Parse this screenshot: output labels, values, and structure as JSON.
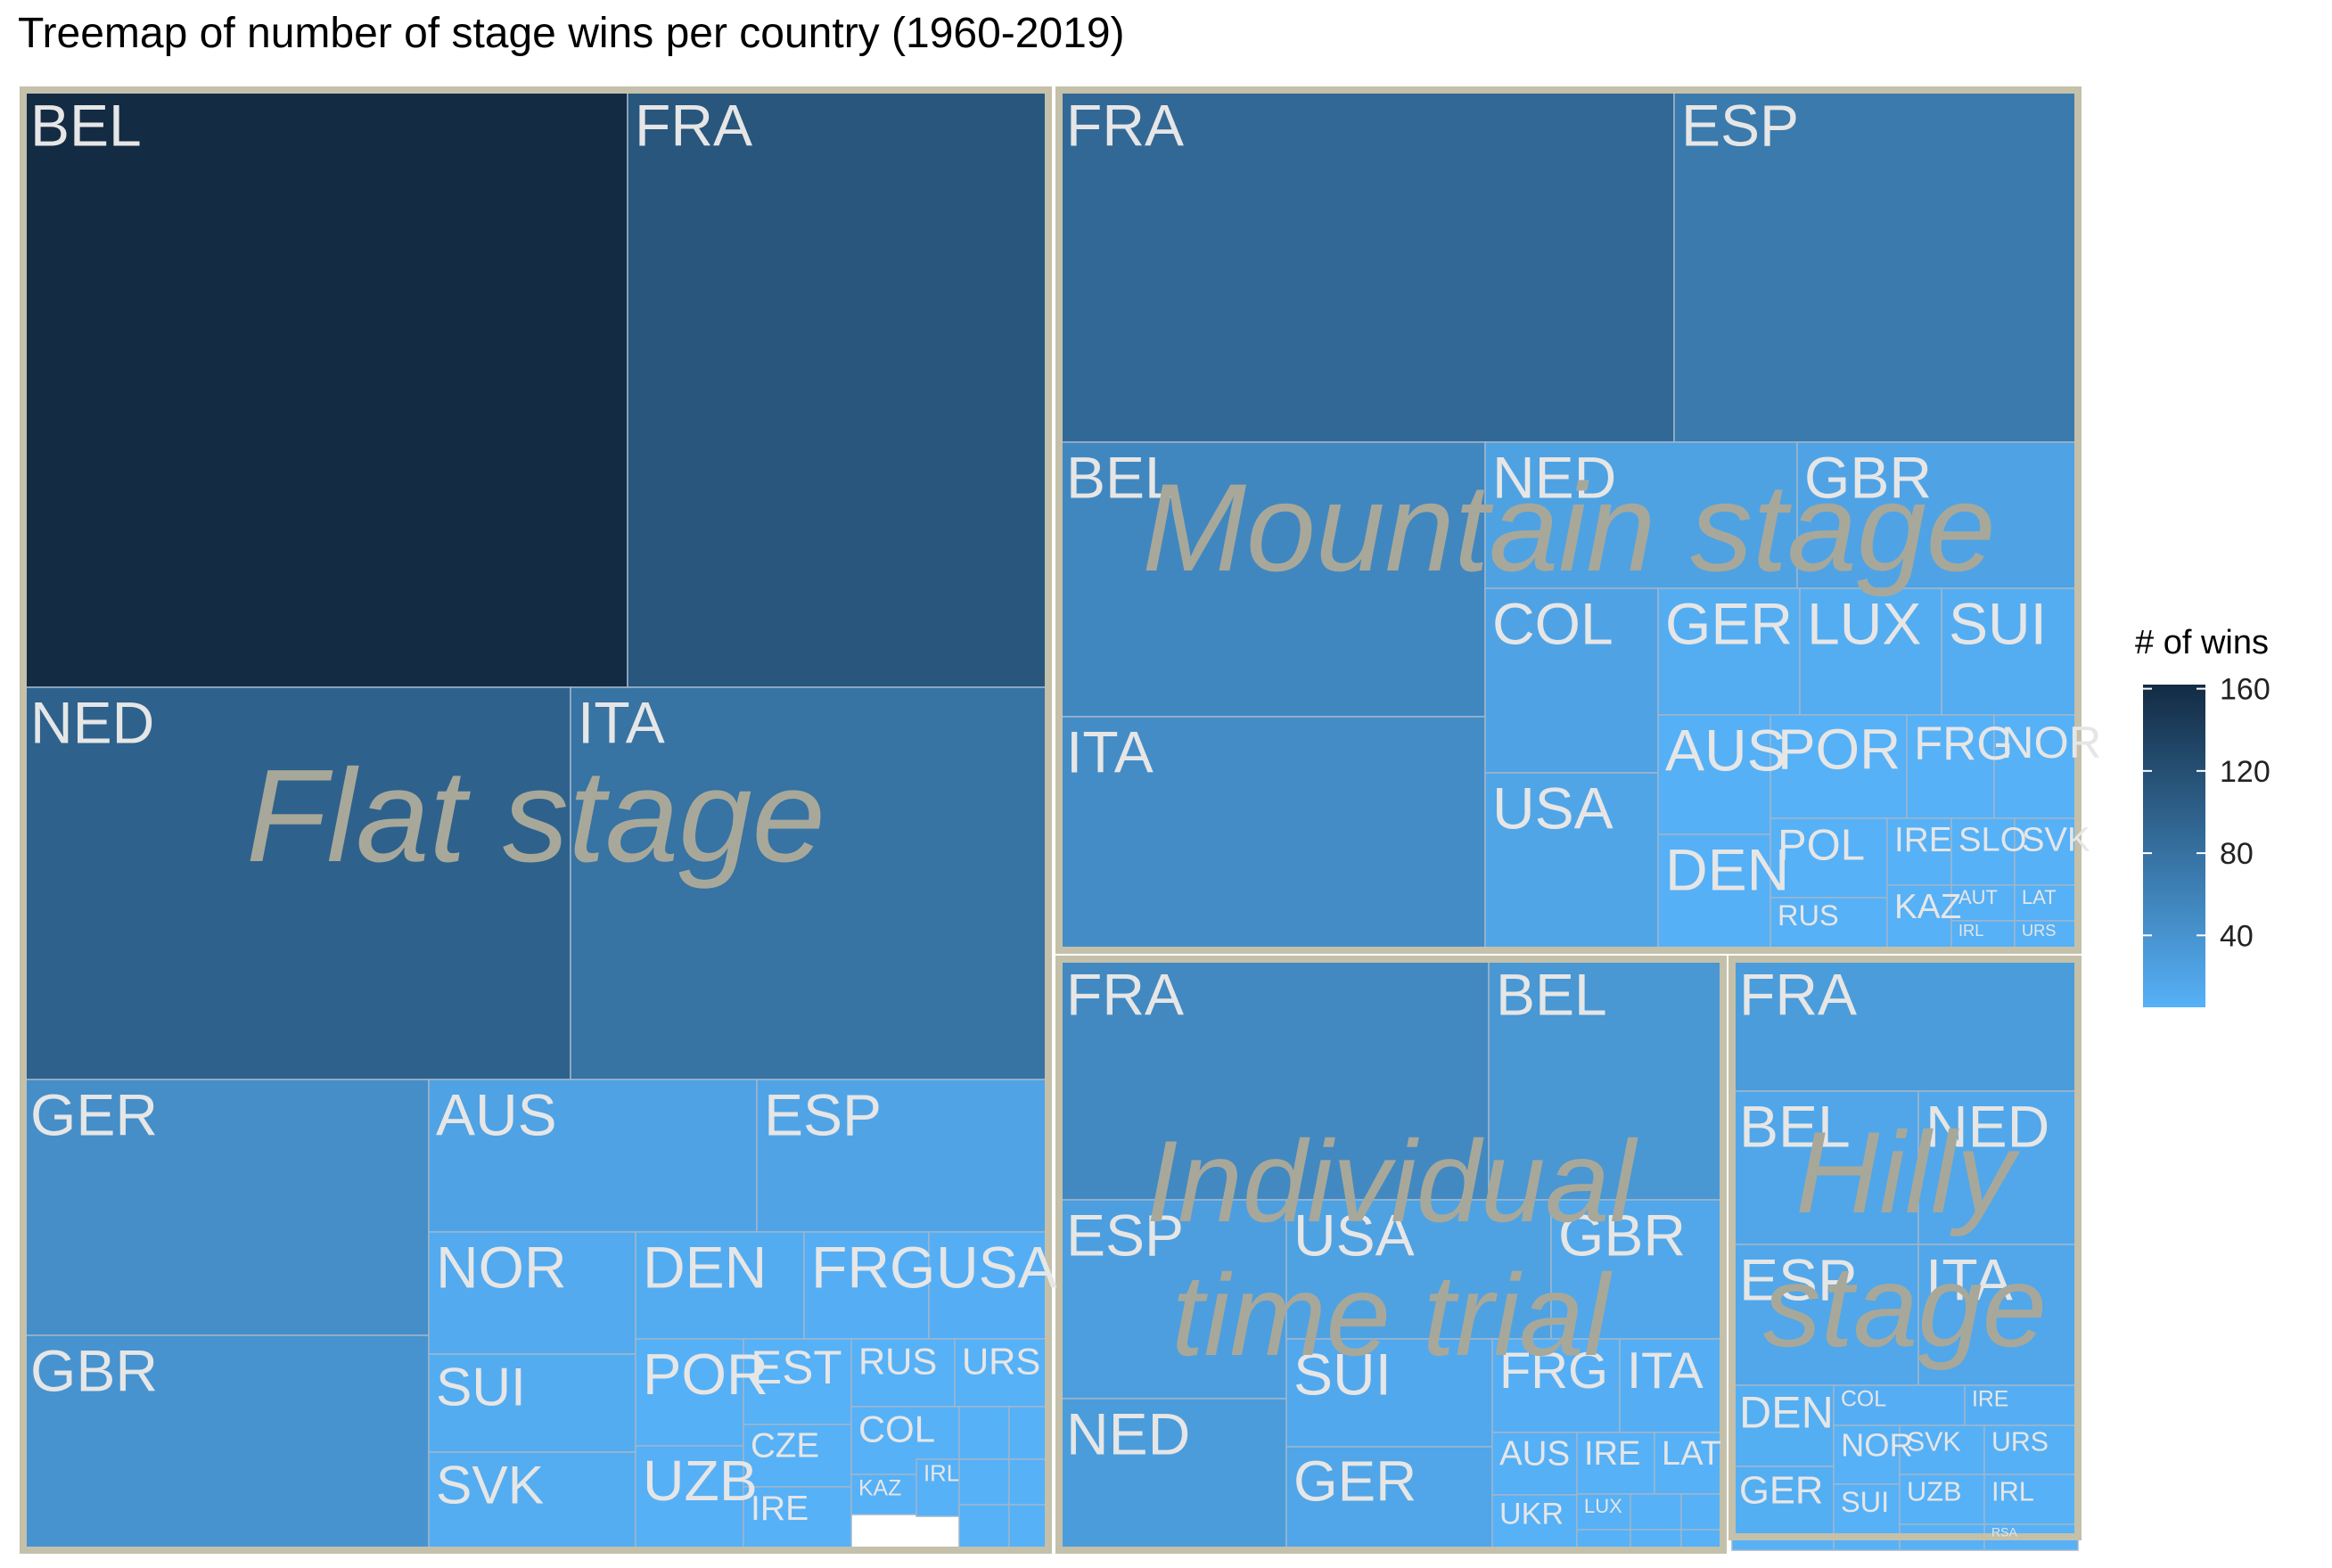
{
  "chart_data": {
    "type": "treemap",
    "title": "Treemap of number of stage wins per country (1960-2019)",
    "legend": {
      "title": "# of wins",
      "ticks": [
        40,
        80,
        120,
        160
      ],
      "range": [
        5,
        162
      ],
      "color_low": "#56B1F7",
      "color_high": "#132B43",
      "placement": "right"
    },
    "groups": [
      {
        "name": "Flat stage",
        "total": 760,
        "items": [
          {
            "country": "BEL",
            "wins": 162
          },
          {
            "country": "FRA",
            "wins": 112
          },
          {
            "country": "NED",
            "wins": 98
          },
          {
            "country": "ITA",
            "wins": 78
          },
          {
            "country": "GER",
            "wins": 46
          },
          {
            "country": "GBR",
            "wins": 40
          },
          {
            "country": "AUS",
            "wins": 22
          },
          {
            "country": "ESP",
            "wins": 20
          },
          {
            "country": "NOR",
            "wins": 13
          },
          {
            "country": "DEN",
            "wins": 11
          },
          {
            "country": "FRG",
            "wins": 8
          },
          {
            "country": "USA",
            "wins": 8
          },
          {
            "country": "SUI",
            "wins": 11
          },
          {
            "country": "SVK",
            "wins": 10
          },
          {
            "country": "POR",
            "wins": 6
          },
          {
            "country": "UZB",
            "wins": 6
          },
          {
            "country": "EST",
            "wins": 4
          },
          {
            "country": "CZE",
            "wins": 4
          },
          {
            "country": "IRE",
            "wins": 4
          },
          {
            "country": "RUS",
            "wins": 4
          },
          {
            "country": "URS",
            "wins": 4
          },
          {
            "country": "COL",
            "wins": 3
          },
          {
            "country": "KAZ",
            "wins": 3
          },
          {
            "country": "IRL",
            "wins": 3
          },
          {
            "country": "",
            "wins": 2
          },
          {
            "country": "",
            "wins": 2
          },
          {
            "country": "",
            "wins": 2
          },
          {
            "country": "",
            "wins": 2
          },
          {
            "country": "",
            "wins": 2
          },
          {
            "country": "",
            "wins": 1
          }
        ]
      },
      {
        "name": "Mountain stage",
        "total": 470,
        "items": [
          {
            "country": "FRA",
            "wins": 90
          },
          {
            "country": "ESP",
            "wins": 70
          },
          {
            "country": "BEL",
            "wins": 54
          },
          {
            "country": "ITA",
            "wins": 48
          },
          {
            "country": "NED",
            "wins": 23
          },
          {
            "country": "GBR",
            "wins": 21
          },
          {
            "country": "COL",
            "wins": 21
          },
          {
            "country": "USA",
            "wins": 19
          },
          {
            "country": "GER",
            "wins": 10
          },
          {
            "country": "LUX",
            "wins": 10
          },
          {
            "country": "SUI",
            "wins": 10
          },
          {
            "country": "AUS",
            "wins": 6
          },
          {
            "country": "DEN",
            "wins": 6
          },
          {
            "country": "POR",
            "wins": 5
          },
          {
            "country": "FRG",
            "wins": 4
          },
          {
            "country": "NOR",
            "wins": 4
          },
          {
            "country": "POL",
            "wins": 4
          },
          {
            "country": "RUS",
            "wins": 3
          },
          {
            "country": "IRE",
            "wins": 2
          },
          {
            "country": "SLO",
            "wins": 2
          },
          {
            "country": "SVK",
            "wins": 2
          },
          {
            "country": "KAZ",
            "wins": 2
          },
          {
            "country": "AUT",
            "wins": 1
          },
          {
            "country": "LAT",
            "wins": 1
          },
          {
            "country": "IRL",
            "wins": 1
          },
          {
            "country": "URS",
            "wins": 1
          }
        ]
      },
      {
        "name": "Individual time trial",
        "total": 305,
        "items": [
          {
            "country": "FRA",
            "wins": 52
          },
          {
            "country": "BEL",
            "wins": 36
          },
          {
            "country": "ESP",
            "wins": 27
          },
          {
            "country": "NED",
            "wins": 30
          },
          {
            "country": "USA",
            "wins": 23
          },
          {
            "country": "GBR",
            "wins": 17
          },
          {
            "country": "SUI",
            "wins": 15
          },
          {
            "country": "GER",
            "wins": 18
          },
          {
            "country": "FRG",
            "wins": 8
          },
          {
            "country": "ITA",
            "wins": 8
          },
          {
            "country": "AUS",
            "wins": 6
          },
          {
            "country": "UKR",
            "wins": 5
          },
          {
            "country": "IRE",
            "wins": 3
          },
          {
            "country": "LAT",
            "wins": 3
          },
          {
            "country": "LUX",
            "wins": 3
          },
          {
            "country": "",
            "wins": 2
          },
          {
            "country": "",
            "wins": 2
          },
          {
            "country": "",
            "wins": 2
          },
          {
            "country": "",
            "wins": 2
          },
          {
            "country": "",
            "wins": 1
          }
        ]
      },
      {
        "name": "Hilly stage",
        "total": 186,
        "items": [
          {
            "country": "FRA",
            "wins": 30
          },
          {
            "country": "BEL",
            "wins": 18
          },
          {
            "country": "NED",
            "wins": 17
          },
          {
            "country": "ESP",
            "wins": 17
          },
          {
            "country": "ITA",
            "wins": 17
          },
          {
            "country": "DEN",
            "wins": 9
          },
          {
            "country": "GER",
            "wins": 9
          },
          {
            "country": "COL",
            "wins": 8
          },
          {
            "country": "IRE",
            "wins": 8
          },
          {
            "country": "NOR",
            "wins": 5
          },
          {
            "country": "SUI",
            "wins": 5
          },
          {
            "country": "SVK",
            "wins": 6
          },
          {
            "country": "URS",
            "wins": 6
          },
          {
            "country": "UZB",
            "wins": 5
          },
          {
            "country": "IRL",
            "wins": 4
          },
          {
            "country": "RSA",
            "wins": 3
          },
          {
            "country": "",
            "wins": 3
          },
          {
            "country": "",
            "wins": 2
          },
          {
            "country": "",
            "wins": 2
          },
          {
            "country": "",
            "wins": 1
          },
          {
            "country": "",
            "wins": 1
          }
        ]
      }
    ]
  }
}
